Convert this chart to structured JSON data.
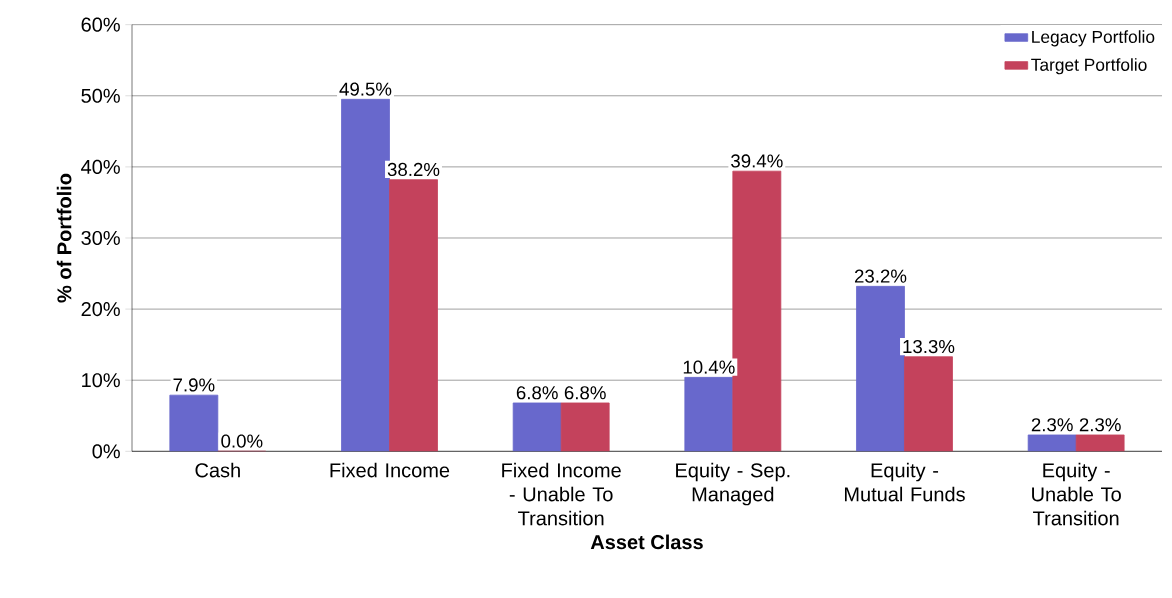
{
  "chart_data": {
    "type": "bar",
    "categories": [
      "Cash",
      "Fixed Income",
      "Fixed Income - Unable To Transition",
      "Equity - Sep. Managed",
      "Equity - Mutual Funds",
      "Equity - Unable To Transition"
    ],
    "xlabel": "Asset Class",
    "ylabel": "% of Portfolio",
    "series": [
      {
        "name": "Legacy Portfolio",
        "color": "#6868cc",
        "values": [
          7.9,
          49.5,
          6.8,
          10.4,
          23.2,
          2.3
        ],
        "value_labels": [
          "7.9%",
          "49.5%",
          "6.8%",
          "10.4%",
          "23.2%",
          "2.3%"
        ]
      },
      {
        "name": "Target Portfolio",
        "color": "#c4425c",
        "values": [
          0.0,
          38.2,
          6.8,
          39.4,
          13.3,
          2.3
        ],
        "value_labels": [
          "0.0%",
          "38.2%",
          "6.8%",
          "39.4%",
          "13.3%",
          "2.3%"
        ]
      }
    ],
    "ylim": [
      0,
      60
    ],
    "yticks": [
      {
        "value": 0,
        "label": "0%"
      },
      {
        "value": 10,
        "label": "10%"
      },
      {
        "value": 20,
        "label": "20%"
      },
      {
        "value": 30,
        "label": "30%"
      },
      {
        "value": 40,
        "label": "40%"
      },
      {
        "value": 50,
        "label": "50%"
      },
      {
        "value": 60,
        "label": "60%"
      }
    ],
    "grid": "y",
    "legend": "top right"
  }
}
